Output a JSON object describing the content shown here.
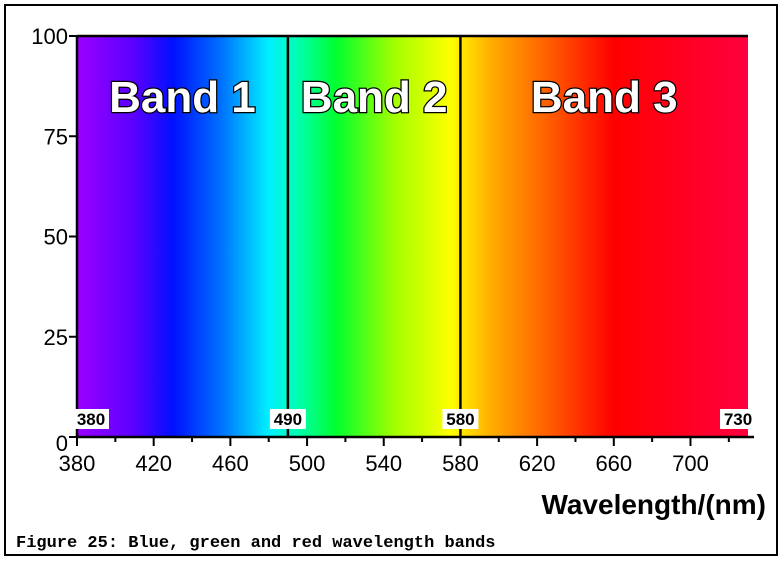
{
  "caption": "Figure 25: Blue, green and red wavelength bands",
  "chart_data": {
    "type": "area",
    "title": "",
    "xlabel": "Wavelength/(nm)",
    "ylabel": "",
    "xlim": [
      380,
      730
    ],
    "ylim": [
      0,
      100
    ],
    "x_ticks": [
      380,
      420,
      460,
      500,
      540,
      580,
      620,
      660,
      700
    ],
    "y_ticks": [
      0,
      25,
      50,
      75,
      100
    ],
    "bands": [
      {
        "name": "Band 1",
        "start": 380,
        "end": 490
      },
      {
        "name": "Band 2",
        "start": 490,
        "end": 580
      },
      {
        "name": "Band 3",
        "start": 580,
        "end": 730
      }
    ],
    "boundary_markers": [
      380,
      490,
      580,
      730
    ],
    "background": "visible-spectrum",
    "spectrum_colors": [
      {
        "nm": 380,
        "color": "#9b00ff"
      },
      {
        "nm": 410,
        "color": "#5a00ff"
      },
      {
        "nm": 430,
        "color": "#0010ff"
      },
      {
        "nm": 455,
        "color": "#0070ff"
      },
      {
        "nm": 480,
        "color": "#00f0ff"
      },
      {
        "nm": 495,
        "color": "#00ffb0"
      },
      {
        "nm": 515,
        "color": "#00ff30"
      },
      {
        "nm": 545,
        "color": "#a0ff00"
      },
      {
        "nm": 575,
        "color": "#ffff00"
      },
      {
        "nm": 595,
        "color": "#ffb000"
      },
      {
        "nm": 625,
        "color": "#ff6000"
      },
      {
        "nm": 660,
        "color": "#ff0000"
      },
      {
        "nm": 730,
        "color": "#ff0040"
      }
    ],
    "grid": false,
    "legend": "none"
  }
}
